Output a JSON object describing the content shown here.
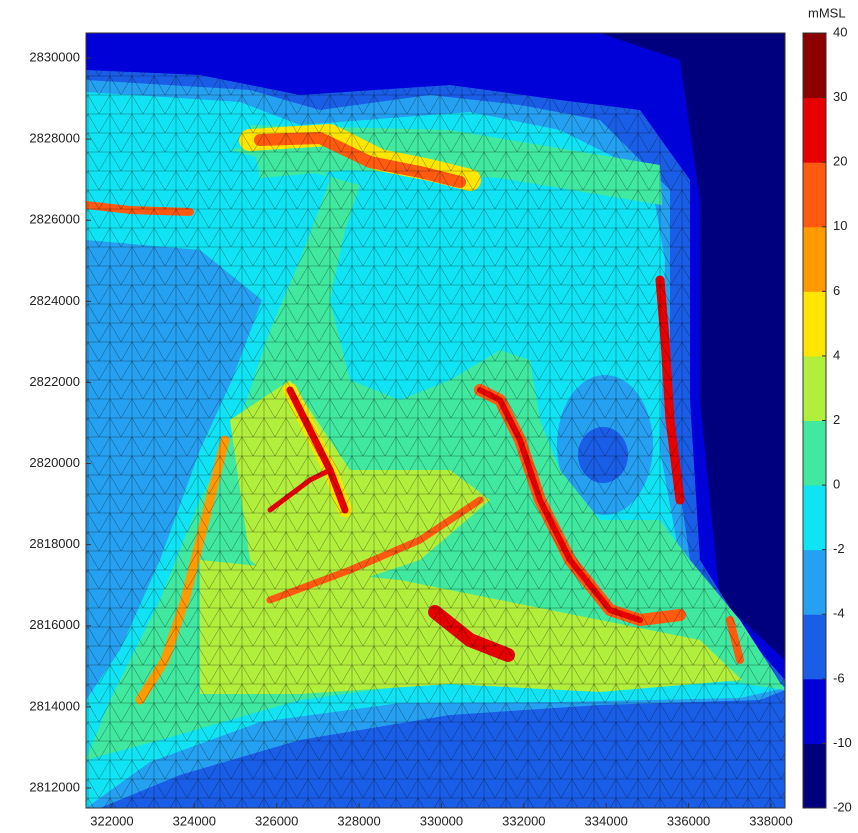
{
  "chart_data": {
    "type": "contour-map",
    "xlim": [
      321370,
      338340
    ],
    "ylim": [
      2811507,
      2830616
    ],
    "xticks": [
      322000,
      324000,
      326000,
      328000,
      330000,
      332000,
      334000,
      336000,
      338000
    ],
    "yticks": [
      2812000,
      2814000,
      2816000,
      2818000,
      2820000,
      2822000,
      2824000,
      2826000,
      2828000,
      2830000
    ],
    "colorbar": {
      "label": "mMSL",
      "levels": [
        -20,
        -10,
        -6,
        -4,
        -2,
        0,
        2,
        4,
        6,
        10,
        20,
        30,
        40
      ],
      "colors": [
        "#00007f",
        "#0000d8",
        "#1a5ee8",
        "#26a0f0",
        "#10e4f4",
        "#40e8a0",
        "#b2ee3c",
        "#ffe600",
        "#ff9a00",
        "#ff5a10",
        "#e60000",
        "#8b0000"
      ]
    }
  }
}
